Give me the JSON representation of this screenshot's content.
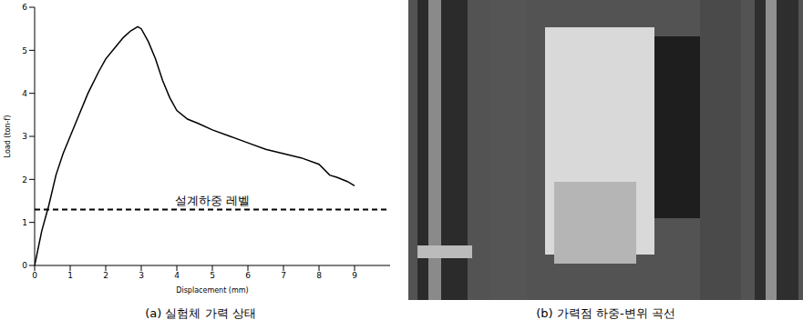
{
  "chart_data": {
    "type": "line",
    "x_label": "Displacement (mm)",
    "y_label": "Load (ton-f)",
    "x": [
      0,
      0.2,
      0.4,
      0.6,
      0.8,
      1.0,
      1.2,
      1.5,
      1.8,
      2.0,
      2.2,
      2.5,
      2.7,
      2.9,
      3.0,
      3.2,
      3.4,
      3.6,
      3.8,
      4.0,
      4.3,
      4.6,
      5.0,
      5.5,
      6.0,
      6.5,
      7.0,
      7.5,
      8.0,
      8.3,
      8.5,
      8.8,
      9.0
    ],
    "series": [
      {
        "name": "Load",
        "color": "#000000",
        "values": [
          0,
          0.8,
          1.4,
          2.1,
          2.6,
          3.0,
          3.4,
          4.0,
          4.5,
          4.8,
          5.0,
          5.3,
          5.45,
          5.55,
          5.5,
          5.2,
          4.8,
          4.3,
          3.9,
          3.6,
          3.4,
          3.3,
          3.15,
          3.0,
          2.85,
          2.7,
          2.6,
          2.5,
          2.35,
          2.1,
          2.05,
          1.95,
          1.85
        ]
      }
    ],
    "xlim": [
      0,
      10
    ],
    "xticks": [
      0,
      1,
      2,
      3,
      4,
      5,
      6,
      7,
      8,
      9
    ],
    "ylim": [
      0,
      6
    ],
    "yticks": [
      0,
      1,
      2,
      3,
      4,
      5,
      6
    ],
    "grid": false,
    "reference_lines": [
      {
        "y": 1.3,
        "label": "설계하중 레벨",
        "line_style": "dashed"
      }
    ]
  },
  "captions": [
    "(a) 실험체 가력 상태",
    "(b) 가력점 하중-변위 곡선"
  ]
}
